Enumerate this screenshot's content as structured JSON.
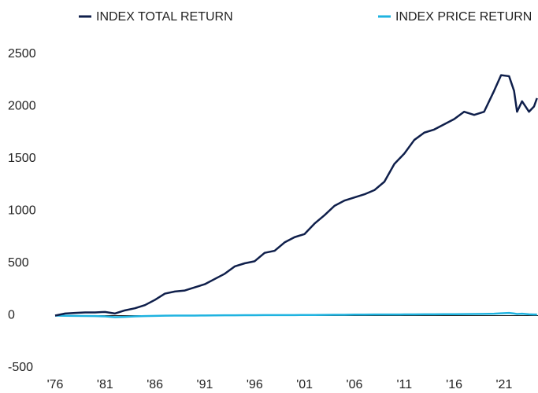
{
  "chart_data": {
    "type": "line",
    "x": [
      1976,
      1977,
      1978,
      1979,
      1980,
      1981,
      1982,
      1983,
      1984,
      1985,
      1986,
      1987,
      1988,
      1989,
      1990,
      1991,
      1992,
      1993,
      1994,
      1995,
      1996,
      1997,
      1998,
      1999,
      2000,
      2001,
      2002,
      2003,
      2004,
      2005,
      2006,
      2007,
      2008,
      2009,
      2010,
      2011,
      2012,
      2013,
      2014,
      2015,
      2016,
      2017,
      2018,
      2019,
      2020,
      2020.7,
      2021.5,
      2022,
      2022.3,
      2022.8,
      2023.5,
      2024,
      2024.3
    ],
    "series": [
      {
        "name": "INDEX TOTAL RETURN",
        "color": "#0f1f4b",
        "values": [
          0,
          20,
          25,
          30,
          30,
          35,
          20,
          50,
          70,
          100,
          150,
          210,
          230,
          240,
          270,
          300,
          350,
          400,
          470,
          500,
          520,
          600,
          620,
          700,
          750,
          780,
          880,
          960,
          1050,
          1100,
          1130,
          1160,
          1200,
          1280,
          1450,
          1550,
          1680,
          1750,
          1780,
          1830,
          1880,
          1950,
          1920,
          1950,
          2150,
          2300,
          2290,
          2150,
          1950,
          2050,
          1950,
          2000,
          2080
        ]
      },
      {
        "name": "INDEX PRICE RETURN",
        "color": "#1fb3e0",
        "values": [
          0,
          -2,
          -3,
          -4,
          -5,
          -8,
          -15,
          -12,
          -8,
          -5,
          -3,
          -1,
          0,
          0,
          0,
          1,
          2,
          3,
          3,
          4,
          4,
          5,
          5,
          5,
          5,
          6,
          6,
          7,
          8,
          8,
          9,
          9,
          10,
          10,
          10,
          11,
          11,
          12,
          12,
          13,
          13,
          14,
          15,
          16,
          18,
          22,
          25,
          20,
          15,
          18,
          12,
          10,
          10
        ]
      }
    ],
    "xlim": [
      1976,
      2024.4
    ],
    "xticks": [
      {
        "value": 1976,
        "label": "'76"
      },
      {
        "value": 1981,
        "label": "'81"
      },
      {
        "value": 1986,
        "label": "'86"
      },
      {
        "value": 1991,
        "label": "'91"
      },
      {
        "value": 1996,
        "label": "'96"
      },
      {
        "value": 2001,
        "label": "'01"
      },
      {
        "value": 2006,
        "label": "'06"
      },
      {
        "value": 2011,
        "label": "'11"
      },
      {
        "value": 2016,
        "label": "'16"
      },
      {
        "value": 2021,
        "label": "'21"
      }
    ],
    "ylim": [
      -500,
      2500
    ],
    "yticks": [
      -500,
      0,
      500,
      1000,
      1500,
      2000,
      2500
    ],
    "grid": false
  }
}
